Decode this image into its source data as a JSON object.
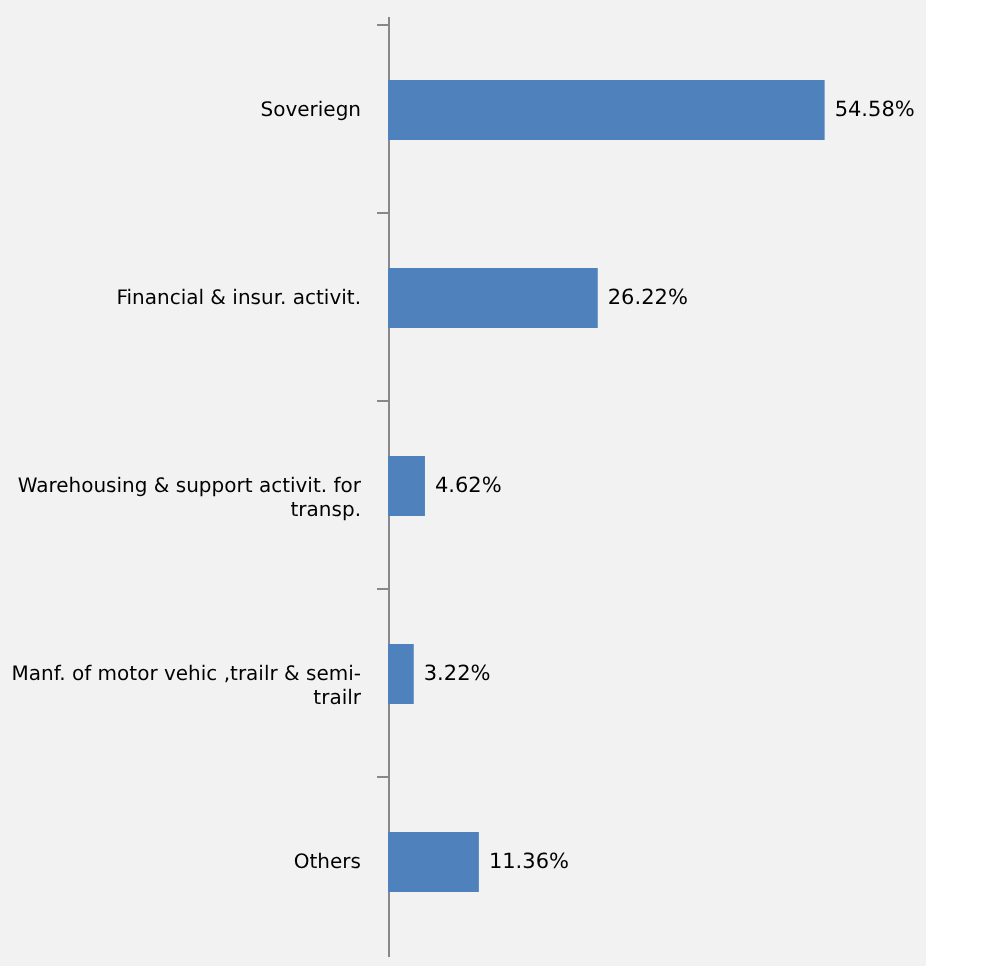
{
  "chart_data": {
    "type": "bar",
    "orientation": "horizontal",
    "categories": [
      "Soveriegn",
      "Financial & insur. activit.",
      "Warehousing & support activit. for transp.",
      "Manf. of motor vehic ,trailr & semi-trailr",
      "Others"
    ],
    "values": [
      54.58,
      26.22,
      4.62,
      3.22,
      11.36
    ],
    "value_labels": [
      "54.58%",
      "26.22%",
      "4.62%",
      "3.22%",
      "11.36%"
    ],
    "color": "#4f81bd",
    "grid": false
  }
}
